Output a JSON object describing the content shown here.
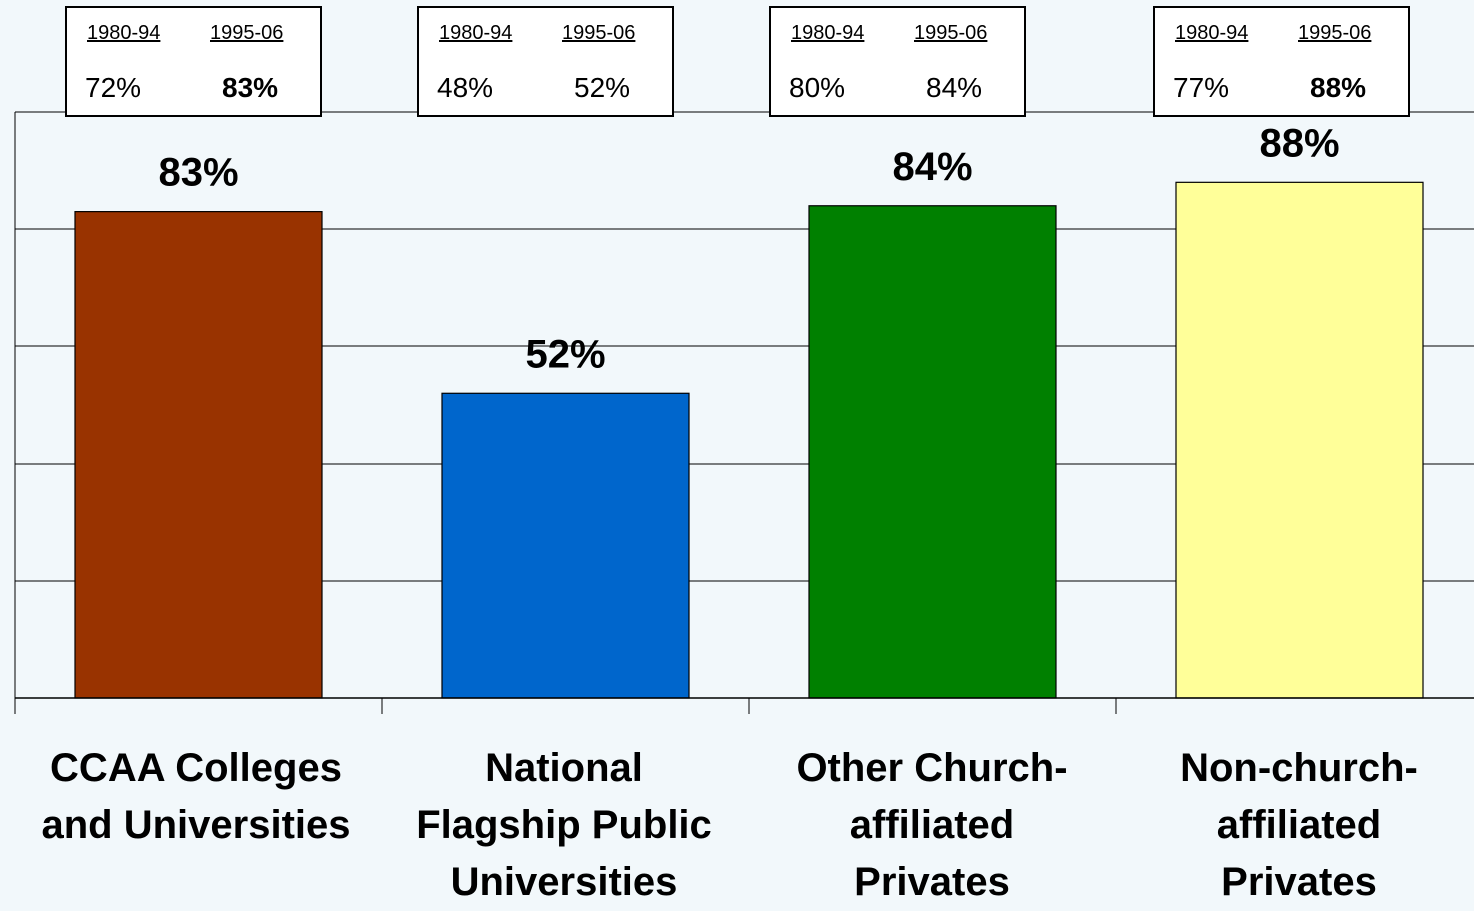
{
  "chart_data": {
    "type": "bar",
    "categories": [
      "CCAA Colleges and Universities",
      "National Flagship Public Universities",
      "Other Church-affiliated Privates",
      "Non-church-affiliated Privates"
    ],
    "values": [
      83,
      52,
      84,
      88
    ],
    "data_labels": [
      "83%",
      "52%",
      "84%",
      "88%"
    ],
    "colors": [
      "#993300",
      "#0066cc",
      "#008000",
      "#ffff99"
    ],
    "ylim": [
      0,
      100
    ],
    "grid": true,
    "legend": "none",
    "title": "",
    "xlabel": "",
    "ylabel": ""
  },
  "period_boxes": [
    {
      "period1": "1980-94",
      "period2": "1995-06",
      "value1": "72%",
      "value2": "83%",
      "bold2": true
    },
    {
      "period1": "1980-94",
      "period2": "1995-06",
      "value1": "48%",
      "value2": "52%",
      "bold2": false
    },
    {
      "period1": "1980-94",
      "period2": "1995-06",
      "value1": "80%",
      "value2": "84%",
      "bold2": false
    },
    {
      "period1": "1980-94",
      "period2": "1995-06",
      "value1": "77%",
      "value2": "88%",
      "bold2": true
    }
  ],
  "category_lines": [
    [
      "CCAA Colleges",
      "and Universities"
    ],
    [
      "National",
      "Flagship Public",
      "Universities"
    ],
    [
      "Other Church-",
      "affiliated",
      "Privates"
    ],
    [
      "Non-church-",
      "affiliated",
      "Privates"
    ]
  ]
}
